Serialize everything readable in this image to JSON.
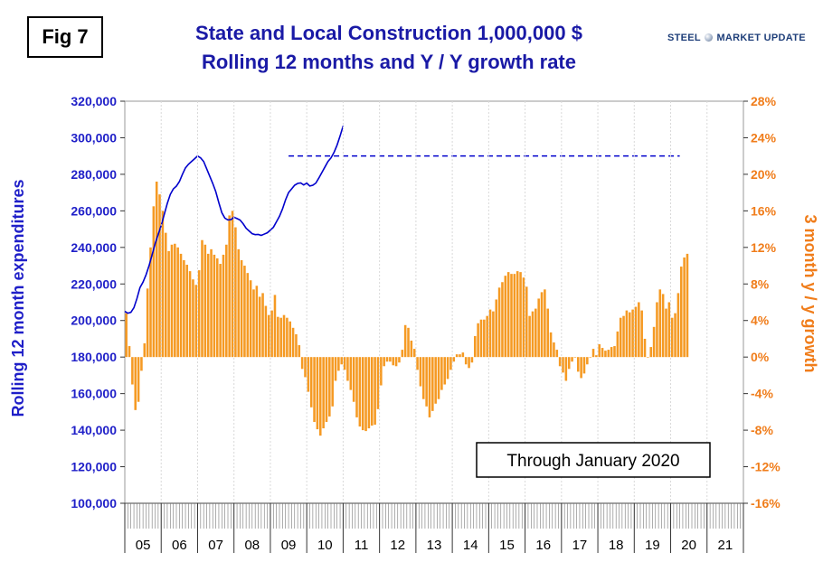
{
  "fig_label": "Fig 7",
  "brand": {
    "name": "STEEL MARKET UPDATE"
  },
  "colors": {
    "left_axis": "#1f1fc8",
    "right_axis": "#f07d1b",
    "bars": "#f59a23",
    "line": "#0000cc"
  },
  "chart_data": {
    "type": "bar+line",
    "title": "State and Local Construction 1,000,000 $",
    "subtitle": "Rolling 12 months and Y / Y growth rate",
    "annotation": "Through January 2020",
    "ylabel_left": "Rolling 12 month expenditures",
    "ylabel_right": "3 month y / y growth",
    "y_left": {
      "range": [
        100000,
        320000
      ],
      "step": 20000,
      "tick_labels": [
        "100,000",
        "120,000",
        "140,000",
        "160,000",
        "180,000",
        "200,000",
        "220,000",
        "240,000",
        "260,000",
        "280,000",
        "300,000",
        "320,000"
      ]
    },
    "y_right": {
      "range": [
        -16,
        28
      ],
      "step": 4,
      "tick_labels": [
        "-16%",
        "-12%",
        "-8%",
        "-4%",
        "0%",
        "4%",
        "8%",
        "12%",
        "16%",
        "20%",
        "24%",
        "28%"
      ]
    },
    "x_labels": [
      "05",
      "06",
      "07",
      "08",
      "09",
      "10",
      "11",
      "12",
      "13",
      "14",
      "15",
      "16",
      "17",
      "18",
      "19",
      "20",
      "21"
    ],
    "x_start_year": 2005,
    "x_months_total": 204,
    "series": [
      {
        "name": "3 month y/y growth (%)",
        "type": "bar",
        "axis": "right",
        "start_month_index": 0,
        "values": [
          4.8,
          1.2,
          -3.0,
          -5.8,
          -4.9,
          -1.5,
          1.5,
          7.5,
          12,
          16.5,
          19.2,
          17.8,
          16,
          13.6,
          11.6,
          12.3,
          12.4,
          12,
          11.3,
          10.6,
          10.1,
          9.4,
          8.5,
          7.9,
          9.5,
          12.8,
          12.3,
          11.3,
          11.8,
          11.2,
          10.8,
          10.2,
          11.2,
          12.3,
          15.5,
          16,
          14.2,
          11.8,
          10.6,
          10.0,
          9.2,
          8.4,
          7.4,
          7.8,
          6.6,
          7.0,
          5.6,
          4.6,
          5.1,
          6.8,
          4.4,
          4.3,
          4.6,
          4.3,
          3.9,
          3.2,
          2.5,
          1.3,
          -1.3,
          -2.2,
          -3.8,
          -5.5,
          -7.1,
          -7.9,
          -8.6,
          -7.8,
          -7.1,
          -6.5,
          -5.4,
          -2.6,
          -1.5,
          -0.8,
          -1.4,
          -2.6,
          -3.6,
          -4.9,
          -6.6,
          -7.6,
          -8.0,
          -8.1,
          -7.8,
          -7.5,
          -7.4,
          -5.7,
          -3.1,
          -1.0,
          -0.5,
          -0.5,
          -0.9,
          -1.0,
          -0.6,
          0.8,
          3.5,
          3.2,
          1.8,
          0.9,
          -1.4,
          -3.2,
          -4.6,
          -5.4,
          -6.6,
          -5.9,
          -5.1,
          -4.6,
          -3.6,
          -3.0,
          -2.4,
          -1.4,
          -0.5,
          0.3,
          0.3,
          0.5,
          -0.8,
          -1.2,
          -0.6,
          2.3,
          3.7,
          4.1,
          4.1,
          4.5,
          5.2,
          5.0,
          6.3,
          7.6,
          8.2,
          8.9,
          9.3,
          9.1,
          9.1,
          9.4,
          9.3,
          8.7,
          7.7,
          4.5,
          5.0,
          5.3,
          6.4,
          7.1,
          7.4,
          5.3,
          2.7,
          1.6,
          0.8,
          -1.0,
          -1.7,
          -2.6,
          -1.3,
          -0.5,
          0.0,
          -1.6,
          -2.3,
          -1.8,
          -0.8,
          0.0,
          0.9,
          0.2,
          1.4,
          1.0,
          0.7,
          0.8,
          1.1,
          1.2,
          2.8,
          4.3,
          4.5,
          5.1,
          4.9,
          5.2,
          5.5,
          6.0,
          5.1,
          2.0,
          0.0,
          1.1,
          3.3,
          6.0,
          7.4,
          6.9,
          5.3,
          6.0,
          4.3,
          4.8,
          7.0,
          9.9,
          10.9,
          11.3
        ]
      },
      {
        "name": "Rolling 12 month expenditures ($M)",
        "type": "line",
        "axis": "left",
        "start_month_index": 0,
        "values": [
          205000,
          204000,
          204500,
          207000,
          212000,
          218000,
          221000,
          225000,
          230000,
          236000,
          242000,
          247000,
          252000,
          258000,
          264000,
          269000,
          272000,
          273500,
          276000,
          280000,
          283500,
          285500,
          287000,
          288500,
          290000,
          289000,
          287000,
          283000,
          279000,
          275000,
          270500,
          264500,
          259000,
          256000,
          255000,
          255200,
          256500,
          255800,
          255000,
          253000,
          250500,
          249000,
          247500,
          247000,
          247100,
          246600,
          247300,
          248000,
          249500,
          251000,
          254000,
          257000,
          261000,
          266000,
          270000,
          272000,
          274000,
          275000,
          275300,
          274200,
          275200,
          273600,
          274000,
          275200,
          278000,
          281000,
          284000,
          287000,
          289000,
          292000,
          296000,
          301000,
          306500
        ]
      }
    ],
    "reference_line": {
      "value": 290000,
      "axis": "left",
      "start_month_index": 54,
      "end_month_index": 183,
      "style": "dashed"
    }
  }
}
